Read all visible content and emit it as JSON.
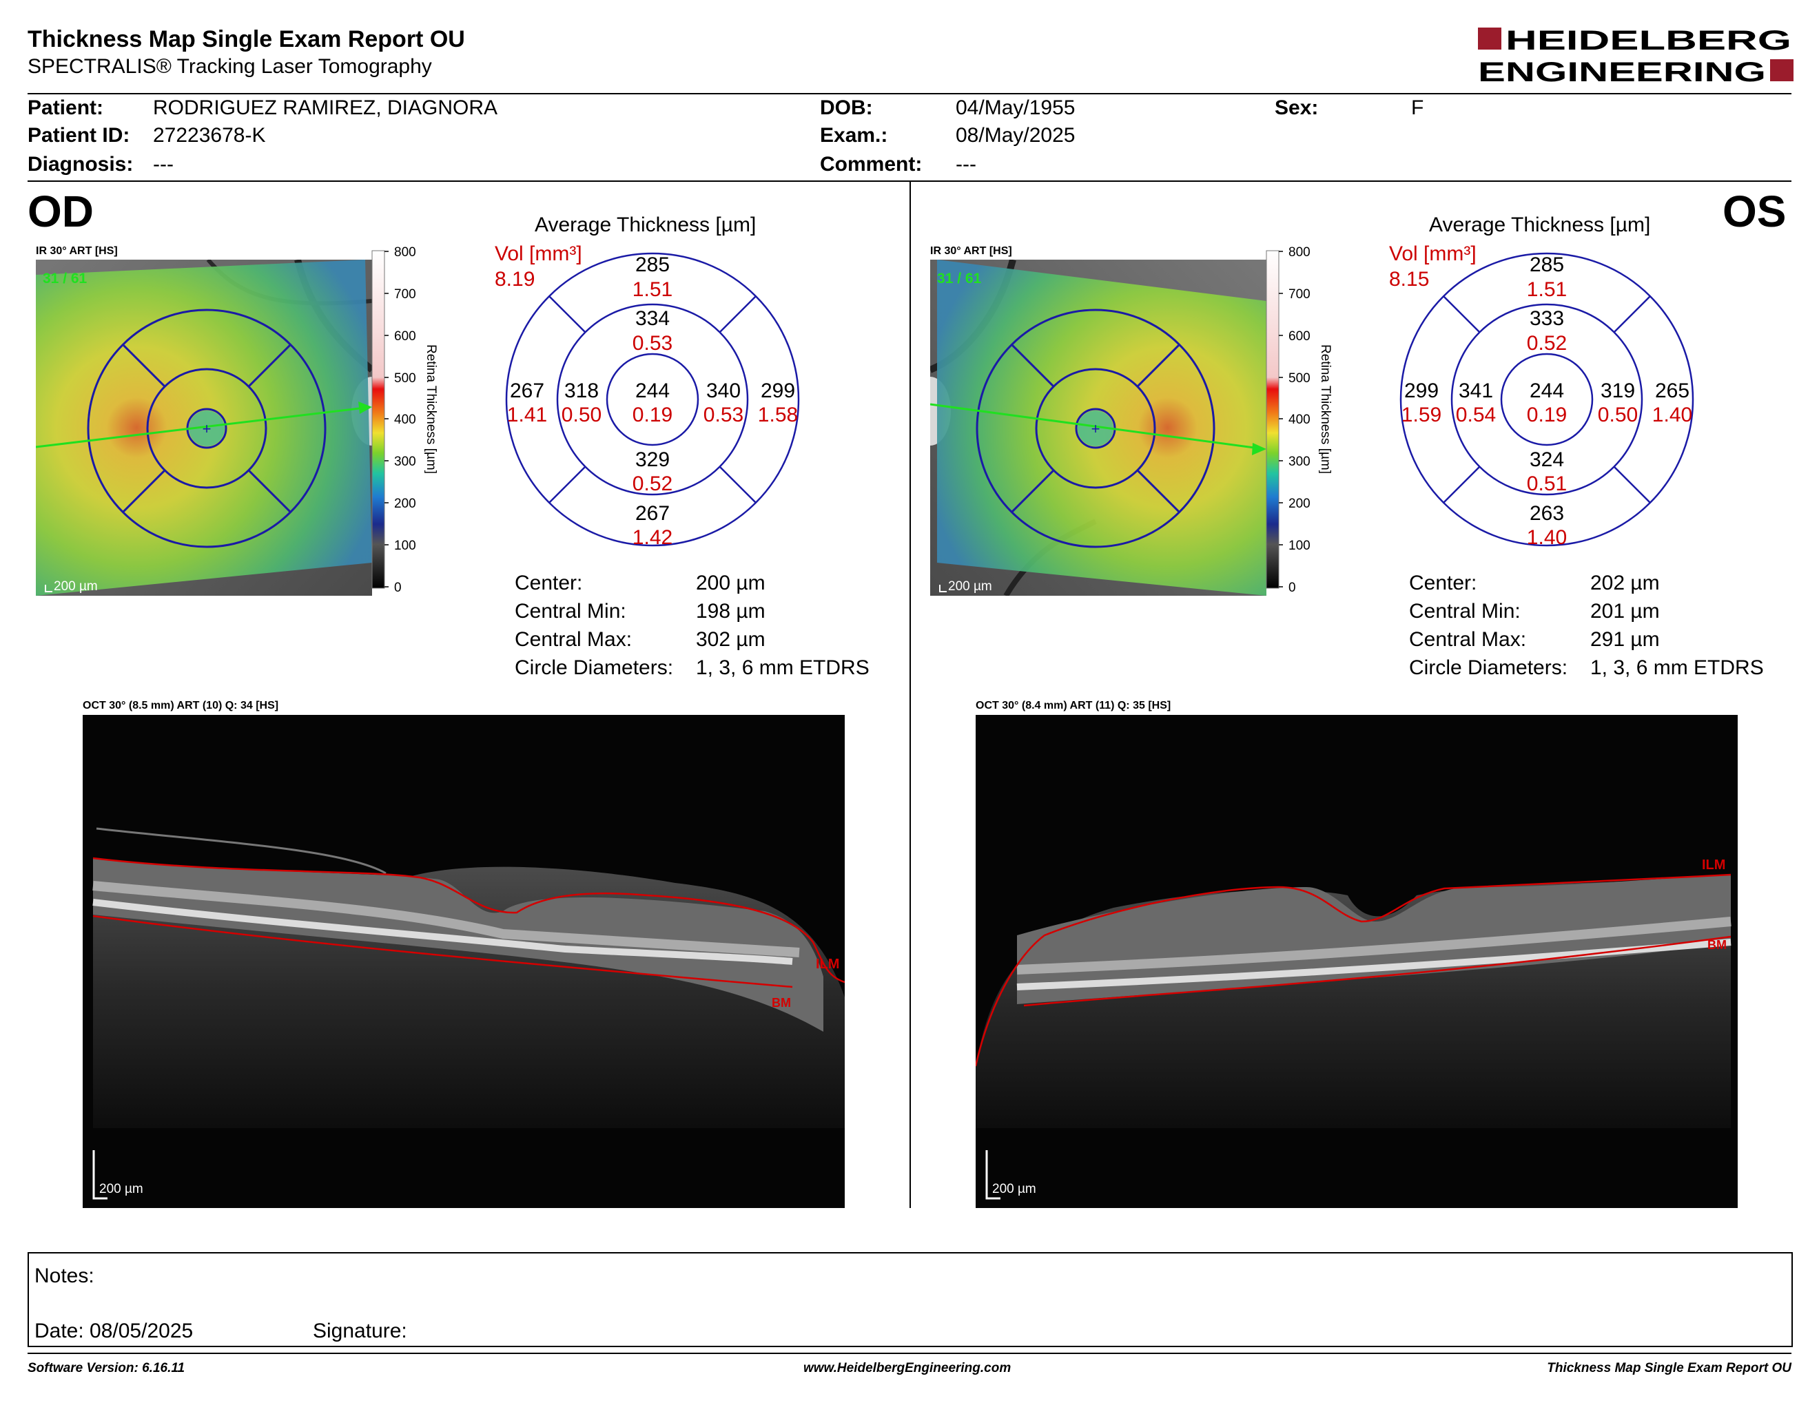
{
  "report": {
    "title": "Thickness Map Single Exam Report OU",
    "subtitle": "SPECTRALIS® Tracking Laser Tomography"
  },
  "logo": {
    "line1": "HEIDELBERG",
    "line2": "ENGINEERING",
    "accent": "#9b1c2c"
  },
  "patient": {
    "patient_label": "Patient:",
    "patient_value": "RODRIGUEZ RAMIREZ, DIAGNORA",
    "id_label": "Patient ID:",
    "id_value": "27223678-K",
    "diagnosis_label": "Diagnosis:",
    "diagnosis_value": "---",
    "dob_label": "DOB:",
    "dob_value": "04/May/1955",
    "exam_label": "Exam.:",
    "exam_value": "08/May/2025",
    "comment_label": "Comment:",
    "comment_value": "---",
    "sex_label": "Sex:",
    "sex_value": "F"
  },
  "od": {
    "eye": "OD",
    "ir_header": "IR 30° ART [HS]",
    "ir_counter": "31 / 61",
    "ir_scale": "200 µm",
    "colorbar_title": "Retina Thickness [µm]",
    "colorbar_ticks": [
      "800",
      "700",
      "600",
      "500",
      "400",
      "300",
      "200",
      "100",
      "0"
    ],
    "avg_title": "Average Thickness [µm]",
    "vol_label": "Vol [mm³]",
    "vol_value": "8.19",
    "grid": {
      "outer_top": {
        "t": "285",
        "v": "1.51"
      },
      "inner_top": {
        "t": "334",
        "v": "0.53"
      },
      "outer_left": {
        "t": "267",
        "v": "1.41"
      },
      "inner_left": {
        "t": "318",
        "v": "0.50"
      },
      "center": {
        "t": "244",
        "v": "0.19"
      },
      "inner_right": {
        "t": "340",
        "v": "0.53"
      },
      "outer_right": {
        "t": "299",
        "v": "1.58"
      },
      "inner_bottom": {
        "t": "329",
        "v": "0.52"
      },
      "outer_bottom": {
        "t": "267",
        "v": "1.42"
      }
    },
    "stats": {
      "center_label": "Center:",
      "center_value": "200 µm",
      "min_label": "Central Min:",
      "min_value": "198 µm",
      "max_label": "Central Max:",
      "max_value": "302 µm",
      "diam_label": "Circle Diameters:",
      "diam_value": "1, 3, 6 mm ETDRS"
    },
    "oct_header": "OCT 30° (8.5 mm) ART (10) Q: 34 [HS]",
    "oct_scale": "200 µm",
    "ilm_label": "ILM",
    "bm_label": "BM"
  },
  "os": {
    "eye": "OS",
    "ir_header": "IR 30° ART [HS]",
    "ir_counter": "31 / 61",
    "ir_scale": "200 µm",
    "colorbar_title": "Retina Thickness [µm]",
    "colorbar_ticks": [
      "800",
      "700",
      "600",
      "500",
      "400",
      "300",
      "200",
      "100",
      "0"
    ],
    "avg_title": "Average Thickness [µm]",
    "vol_label": "Vol [mm³]",
    "vol_value": "8.15",
    "grid": {
      "outer_top": {
        "t": "285",
        "v": "1.51"
      },
      "inner_top": {
        "t": "333",
        "v": "0.52"
      },
      "outer_left": {
        "t": "299",
        "v": "1.59"
      },
      "inner_left": {
        "t": "341",
        "v": "0.54"
      },
      "center": {
        "t": "244",
        "v": "0.19"
      },
      "inner_right": {
        "t": "319",
        "v": "0.50"
      },
      "outer_right": {
        "t": "265",
        "v": "1.40"
      },
      "inner_bottom": {
        "t": "324",
        "v": "0.51"
      },
      "outer_bottom": {
        "t": "263",
        "v": "1.40"
      }
    },
    "stats": {
      "center_label": "Center:",
      "center_value": "202 µm",
      "min_label": "Central Min:",
      "min_value": "201 µm",
      "max_label": "Central Max:",
      "max_value": "291 µm",
      "diam_label": "Circle Diameters:",
      "diam_value": "1, 3, 6 mm ETDRS"
    },
    "oct_header": "OCT 30° (8.4 mm) ART (11) Q: 35 [HS]",
    "oct_scale": "200 µm",
    "ilm_label": "ILM",
    "bm_label": "BM"
  },
  "notes": {
    "notes_label": "Notes:",
    "date_label": "Date: 08/05/2025",
    "signature_label": "Signature:"
  },
  "footer": {
    "software": "Software Version: 6.16.11",
    "website": "www.HeidelbergEngineering.com",
    "report_name": "Thickness Map Single Exam Report OU"
  },
  "colors": {
    "grid_blue": "#1a1aa6",
    "volume_red": "#cc0000",
    "ilm_red": "#d40000",
    "scan_green": "#20e020"
  }
}
